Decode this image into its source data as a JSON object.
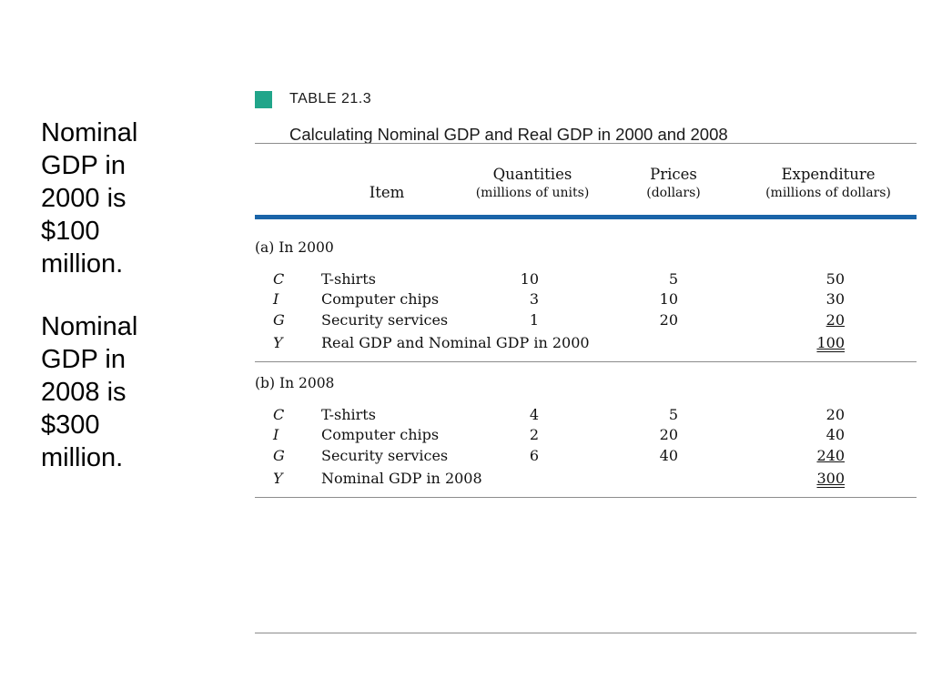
{
  "notes": [
    "Nominal\nGDP in\n2000 is\n$100\nmillion.",
    "Nominal\nGDP in\n2008 is\n$300\nmillion."
  ],
  "table": {
    "label": "TABLE 21.3",
    "title": "Calculating Nominal GDP and Real GDP in 2000 and 2008",
    "marker_color": "#21a58a",
    "rule_color": "#1a64a8",
    "columns": {
      "item": "Item",
      "quantities": "Quantities",
      "quantities_unit": "(millions of units)",
      "prices": "Prices",
      "prices_unit": "(dollars)",
      "expenditure": "Expenditure",
      "expenditure_unit": "(millions of dollars)"
    },
    "sections": [
      {
        "label": "(a) In 2000",
        "rows": [
          {
            "symbol": "C",
            "item": "T-shirts",
            "quantity": "10",
            "price": "5",
            "expenditure": "50"
          },
          {
            "symbol": "I",
            "item": "Computer chips",
            "quantity": "3",
            "price": "10",
            "expenditure": "30"
          },
          {
            "symbol": "G",
            "item": "Security services",
            "quantity": "1",
            "price": "20",
            "expenditure": "20"
          },
          {
            "symbol": "Y",
            "item": "Real GDP and Nominal GDP in 2000",
            "quantity": "",
            "price": "",
            "expenditure": "100"
          }
        ]
      },
      {
        "label": "(b) In 2008",
        "rows": [
          {
            "symbol": "C",
            "item": "T-shirts",
            "quantity": "4",
            "price": "5",
            "expenditure": "20"
          },
          {
            "symbol": "I",
            "item": "Computer chips",
            "quantity": "2",
            "price": "20",
            "expenditure": "40"
          },
          {
            "symbol": "G",
            "item": "Security services",
            "quantity": "6",
            "price": "40",
            "expenditure": "240"
          },
          {
            "symbol": "Y",
            "item": "Nominal GDP in 2008",
            "quantity": "",
            "price": "",
            "expenditure": "300"
          }
        ]
      }
    ]
  }
}
